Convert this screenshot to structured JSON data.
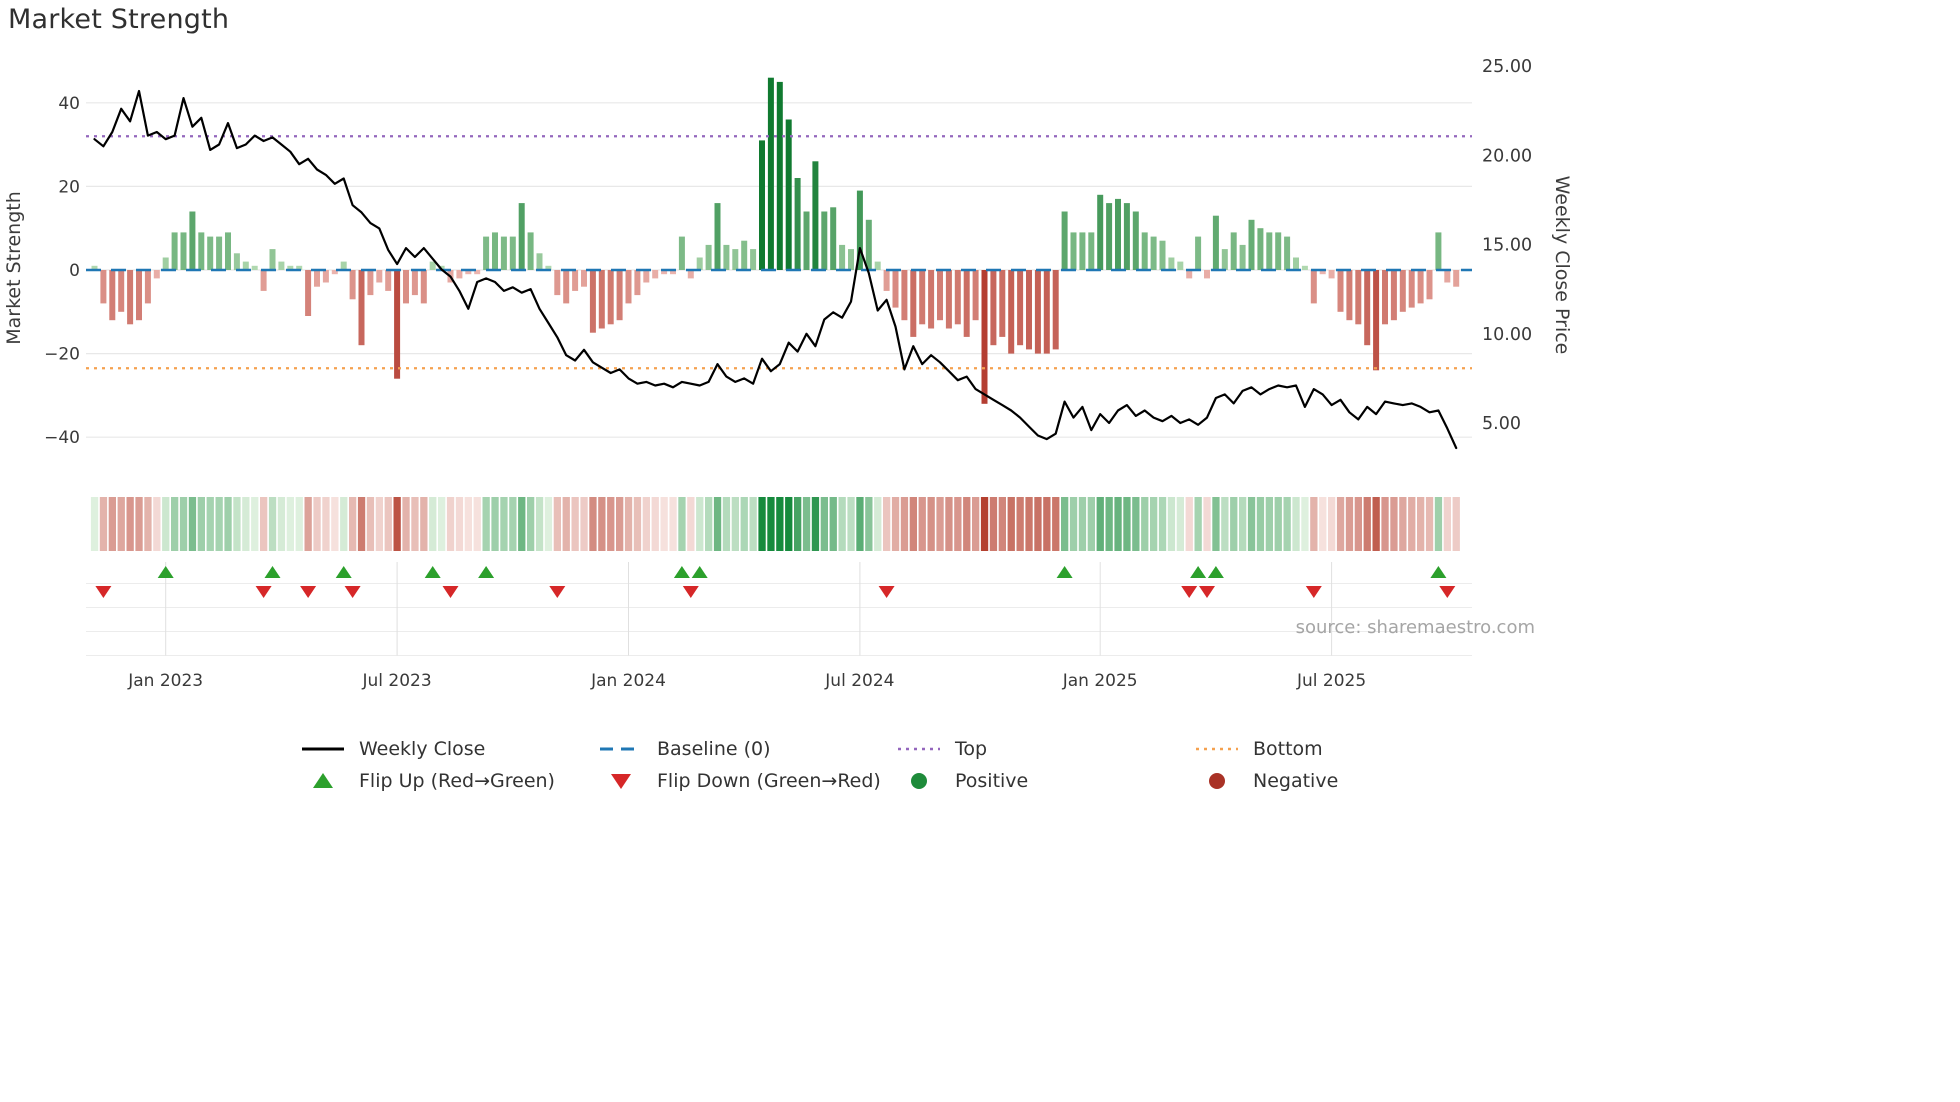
{
  "title": "Market Strength",
  "source": "source: sharemaestro.com",
  "axes": {
    "left_title": "Market Strength",
    "right_title": "Weekly Close Price"
  },
  "legend": {
    "weekly_close": "Weekly Close",
    "baseline": "Baseline (0)",
    "top": "Top",
    "bottom": "Bottom",
    "flip_up": "Flip Up (Red→Green)",
    "flip_down": "Flip Down (Green→Red)",
    "positive": "Positive",
    "negative": "Negative"
  },
  "colors": {
    "line": "#000000",
    "baseline": "#1f77b4",
    "top": "#9467bd",
    "bottom": "#f5a14f",
    "flip_up": "#2ca02c",
    "flip_down": "#d62728",
    "positive": "#1e8b3a",
    "negative": "#a93226",
    "bar_green_light": "#bee0ba",
    "bar_green_dark": "#107a30",
    "bar_red_light": "#f0beb8",
    "bar_red_dark": "#b43e32"
  },
  "chart_data": {
    "type": "bar+line",
    "title": "Market Strength",
    "start_date": "2022-11-07",
    "interval_days": 7,
    "baseline": 0,
    "top_level": 32,
    "bottom_level": -23.5,
    "grid": true,
    "legend_position": "bottom",
    "left_axis": {
      "title": "Market Strength",
      "ticks": [
        40,
        20,
        0,
        -20,
        -40
      ],
      "range": [
        -46,
        49
      ]
    },
    "right_axis": {
      "title": "Weekly Close Price",
      "ticks": [
        25,
        20,
        15,
        10,
        5
      ],
      "range": [
        2.8,
        25
      ]
    },
    "x_ticks": [
      {
        "week": 8,
        "label": "Jan 2023"
      },
      {
        "week": 34,
        "label": "Jul 2023"
      },
      {
        "week": 60,
        "label": "Jan 2024"
      },
      {
        "week": 86,
        "label": "Jul 2024"
      },
      {
        "week": 113,
        "label": "Jan 2025"
      },
      {
        "week": 139,
        "label": "Jul 2025"
      }
    ],
    "series": [
      {
        "name": "Market Strength",
        "type": "bar",
        "axis": "left",
        "values": [
          1,
          -8,
          -12,
          -10,
          -13,
          -12,
          -8,
          -2,
          3,
          9,
          9,
          14,
          9,
          8,
          8,
          9,
          4,
          2,
          1,
          -5,
          5,
          2,
          1,
          1,
          -11,
          -4,
          -3,
          -1,
          2,
          -7,
          -18,
          -6,
          -3,
          -5,
          -26,
          -8,
          -6,
          -8,
          2,
          1,
          -3,
          -2,
          -1,
          -1,
          8,
          9,
          8,
          8,
          16,
          9,
          4,
          1,
          -6,
          -8,
          -5,
          -4,
          -15,
          -14,
          -13,
          -12,
          -8,
          -6,
          -3,
          -2,
          -1,
          -1,
          8,
          -2,
          3,
          6,
          16,
          6,
          5,
          7,
          5,
          31,
          46,
          45,
          36,
          22,
          14,
          26,
          14,
          15,
          6,
          5,
          19,
          12,
          2,
          -5,
          -9,
          -12,
          -16,
          -13,
          -14,
          -12,
          -14,
          -13,
          -16,
          -12,
          -32,
          -18,
          -16,
          -20,
          -18,
          -19,
          -20,
          -20,
          -19,
          14,
          9,
          9,
          9,
          18,
          16,
          17,
          16,
          14,
          9,
          8,
          7,
          3,
          2,
          -2,
          8,
          -2,
          13,
          5,
          9,
          6,
          12,
          10,
          9,
          9,
          8,
          3,
          1,
          -8,
          -1,
          -2,
          -10,
          -12,
          -13,
          -18,
          -24,
          -13,
          -12,
          -10,
          -9,
          -8,
          -7,
          9,
          -3,
          -4
        ]
      },
      {
        "name": "Weekly Close",
        "type": "line",
        "axis": "right",
        "values": [
          20.9,
          20.5,
          21.3,
          22.6,
          21.9,
          23.6,
          21.1,
          21.3,
          20.9,
          21.1,
          23.2,
          21.6,
          22.1,
          20.3,
          20.6,
          21.8,
          20.4,
          20.6,
          21.1,
          20.8,
          21.0,
          20.6,
          20.2,
          19.5,
          19.8,
          19.2,
          18.9,
          18.4,
          18.7,
          17.2,
          16.8,
          16.2,
          15.9,
          14.7,
          13.9,
          14.8,
          14.3,
          14.8,
          14.2,
          13.6,
          13.2,
          12.4,
          11.4,
          12.9,
          13.1,
          12.9,
          12.4,
          12.6,
          12.3,
          12.5,
          11.4,
          10.6,
          9.8,
          8.8,
          8.5,
          9.1,
          8.4,
          8.1,
          7.8,
          8.0,
          7.5,
          7.2,
          7.3,
          7.1,
          7.2,
          7.0,
          7.3,
          7.2,
          7.1,
          7.3,
          8.3,
          7.6,
          7.3,
          7.5,
          7.2,
          8.6,
          7.9,
          8.3,
          9.5,
          9.0,
          10.0,
          9.3,
          10.8,
          11.2,
          10.9,
          11.8,
          14.8,
          13.4,
          11.3,
          11.9,
          10.4,
          8.0,
          9.3,
          8.3,
          8.8,
          8.4,
          7.9,
          7.4,
          7.6,
          6.9,
          6.6,
          6.3,
          6.0,
          5.7,
          5.3,
          4.8,
          4.3,
          4.1,
          4.4,
          6.2,
          5.3,
          5.9,
          4.6,
          5.5,
          5.0,
          5.7,
          6.0,
          5.4,
          5.7,
          5.3,
          5.1,
          5.4,
          5.0,
          5.2,
          4.9,
          5.3,
          6.4,
          6.6,
          6.1,
          6.8,
          7.0,
          6.6,
          6.9,
          7.1,
          7.0,
          7.1,
          5.9,
          6.9,
          6.6,
          6.0,
          6.3,
          5.6,
          5.2,
          5.9,
          5.5,
          6.2,
          6.1,
          6.0,
          6.1,
          5.9,
          5.6,
          5.7,
          4.7,
          3.6
        ]
      }
    ],
    "flip_up_weeks": [
      8,
      20,
      28,
      38,
      44,
      66,
      68,
      109,
      124,
      126,
      151
    ],
    "flip_down_weeks": [
      1,
      19,
      24,
      29,
      40,
      52,
      67,
      89,
      123,
      125,
      137,
      152
    ]
  }
}
